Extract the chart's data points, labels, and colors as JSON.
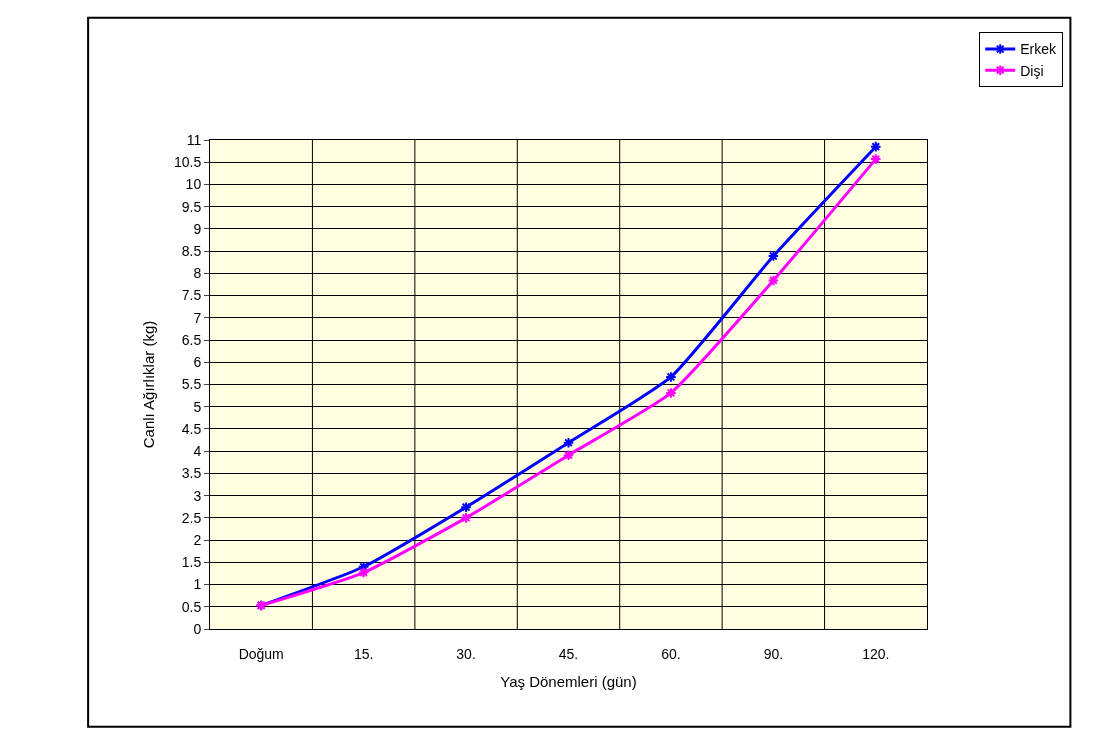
{
  "chart_data": {
    "type": "line",
    "xlabel": "Yaş Dönemleri (gün)",
    "ylabel": "Canlı Ağırlıklar (kg)",
    "categories": [
      "Doğum",
      "15.",
      "30.",
      "45.",
      "60.",
      "90.",
      "120."
    ],
    "series": [
      {
        "name": "Erkek",
        "color": "#0000ff",
        "values": [
          0.53,
          1.4,
          2.74,
          4.19,
          5.67,
          8.39,
          10.85
        ]
      },
      {
        "name": "Dişi",
        "color": "#ff00ff",
        "values": [
          0.53,
          1.27,
          2.5,
          3.91,
          5.31,
          7.84,
          10.57
        ]
      }
    ],
    "ylim": [
      0,
      11
    ],
    "yticks": [
      0,
      0.5,
      1,
      1.5,
      2,
      2.5,
      3,
      3.5,
      4,
      4.5,
      5,
      5.5,
      6,
      6.5,
      7,
      7.5,
      8,
      8.5,
      9,
      9.5,
      10,
      10.5,
      11
    ],
    "grid": true,
    "legend": "top right",
    "marker": "cross",
    "line_style": "solid"
  }
}
